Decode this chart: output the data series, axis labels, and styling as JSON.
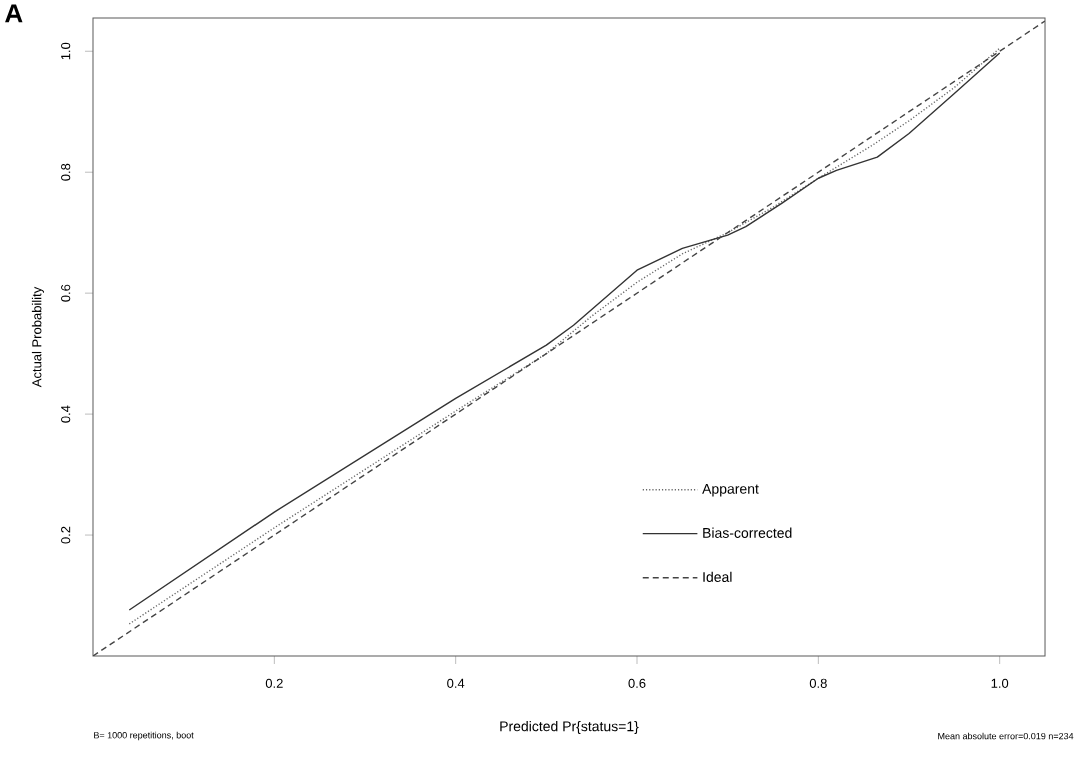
{
  "chart_data": {
    "type": "line",
    "xlabel": "Predicted Pr{status=1}",
    "ylabel": "Actual Probability",
    "xlim": [
      0,
      1.05
    ],
    "ylim": [
      0,
      1.055
    ],
    "xticks": [
      {
        "value": 0.2,
        "label": "0.2"
      },
      {
        "value": 0.4,
        "label": "0.4"
      },
      {
        "value": 0.6,
        "label": "0.6"
      },
      {
        "value": 0.8,
        "label": "0.8"
      },
      {
        "value": 1.0,
        "label": "1.0"
      }
    ],
    "yticks": [
      {
        "value": 0.2,
        "label": "0.2"
      },
      {
        "value": 0.4,
        "label": "0.4"
      },
      {
        "value": 0.6,
        "label": "0.6"
      },
      {
        "value": 0.8,
        "label": "0.8"
      },
      {
        "value": 1.0,
        "label": "1.0"
      }
    ],
    "series": [
      {
        "name": "Apparent",
        "color": "#666666",
        "line_style": "dotted",
        "x": [
          0.04,
          0.2,
          0.4,
          0.5,
          0.55,
          0.6,
          0.65,
          0.7,
          0.75,
          0.8,
          0.86,
          0.9,
          0.95,
          1.0
        ],
        "values": [
          0.053,
          0.212,
          0.405,
          0.5,
          0.562,
          0.618,
          0.665,
          0.7,
          0.742,
          0.79,
          0.845,
          0.885,
          0.94,
          1.005
        ]
      },
      {
        "name": "Bias-corrected",
        "color": "#333333",
        "line_style": "solid",
        "x": [
          0.04,
          0.2,
          0.4,
          0.5,
          0.53,
          0.6,
          0.65,
          0.7,
          0.72,
          0.76,
          0.8,
          0.82,
          0.865,
          0.9,
          0.95,
          1.0
        ],
        "values": [
          0.076,
          0.238,
          0.426,
          0.514,
          0.547,
          0.638,
          0.674,
          0.696,
          0.71,
          0.749,
          0.79,
          0.803,
          0.825,
          0.864,
          0.93,
          0.997
        ]
      },
      {
        "name": "Ideal",
        "color": "#444444",
        "line_style": "dashed",
        "x": [
          0,
          1.05
        ],
        "values": [
          0,
          1.05
        ]
      }
    ],
    "legend": "bottom right",
    "marker": "none",
    "grid": false,
    "annotations": [
      "A",
      "B= 1000 repetitions, boot",
      "Mean absolute error=0.019 n=234"
    ]
  }
}
